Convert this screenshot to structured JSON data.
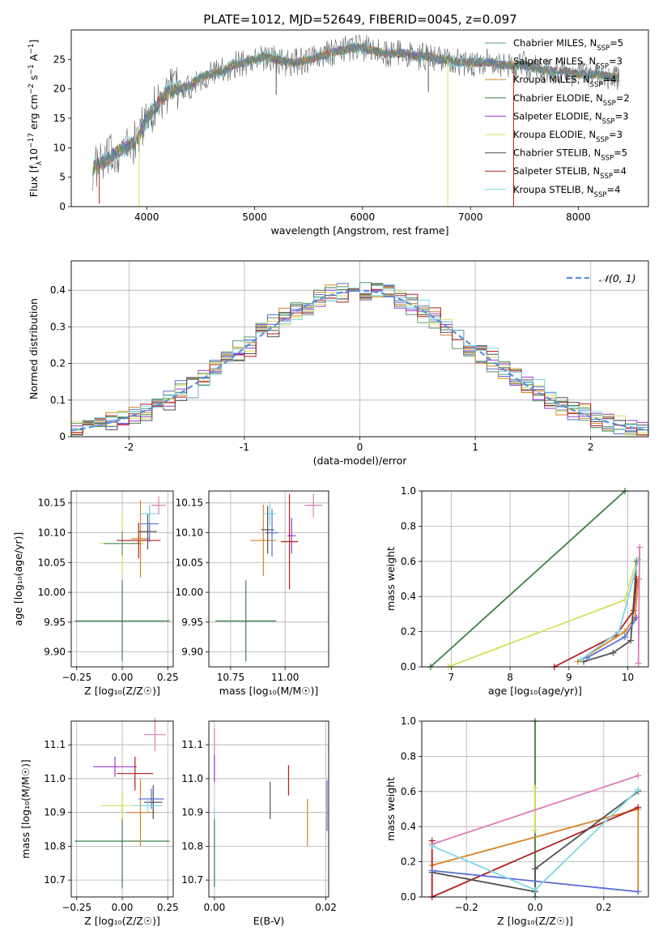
{
  "figure_title": "PLATE=1012, MJD=52649, FIBERID=0045, z=0.097",
  "colors": {
    "Chabrier MILES": "#5b9b6b",
    "Salpeter MILES": "#5a6fd6",
    "Kroupa MILES": "#d98324",
    "Chabrier ELODIE": "#3c7f45",
    "Salpeter ELODIE": "#9a3ad0",
    "Kroupa ELODIE": "#d7e05e",
    "Chabrier STELIB": "#505050",
    "Salpeter STELIB": "#b51d1d",
    "Kroupa STELIB": "#7fd7e4",
    "pink": "#e07ab8",
    "normal_curve": "#5b8fd9"
  },
  "chart_data": [
    {
      "id": "spectrum",
      "type": "line",
      "title": "PLATE=1012, MJD=52649, FIBERID=0045, z=0.097",
      "xlabel": "wavelength [Angstrom, rest frame]",
      "ylabel_parts": [
        "Flux [f",
        "λ",
        "10",
        "−17",
        " erg cm",
        "−2",
        " s",
        "−1",
        " A",
        "−1",
        "]"
      ],
      "xlim": [
        3300,
        8650
      ],
      "ylim": [
        0,
        30
      ],
      "xticks": [
        4000,
        5000,
        6000,
        7000,
        8000
      ],
      "yticks": [
        0,
        5,
        10,
        15,
        20,
        25
      ],
      "legend_position": "right",
      "legend": [
        {
          "label": "Chabrier MILES, N",
          "sub": "SSP",
          "suffix": "=5",
          "key": "Chabrier MILES"
        },
        {
          "label": "Salpeter MILES, N",
          "sub": "SSP",
          "suffix": "=3",
          "key": "Salpeter MILES"
        },
        {
          "label": "Kroupa MILES, N",
          "sub": "SSP",
          "suffix": "=4",
          "key": "Kroupa MILES"
        },
        {
          "label": "Chabrier ELODIE, N",
          "sub": "SSP",
          "suffix": "=2",
          "key": "Chabrier ELODIE"
        },
        {
          "label": "Salpeter ELODIE, N",
          "sub": "SSP",
          "suffix": "=3",
          "key": "Salpeter ELODIE"
        },
        {
          "label": "Kroupa ELODIE, N",
          "sub": "SSP",
          "suffix": "=3",
          "key": "Kroupa ELODIE"
        },
        {
          "label": "Chabrier STELIB, N",
          "sub": "SSP",
          "suffix": "=5",
          "key": "Chabrier STELIB"
        },
        {
          "label": "Salpeter STELIB, N",
          "sub": "SSP",
          "suffix": "=4",
          "key": "Salpeter STELIB"
        },
        {
          "label": "Kroupa STELIB, N",
          "sub": "SSP",
          "suffix": "=4",
          "key": "Kroupa STELIB"
        }
      ],
      "envelope": {
        "x": [
          3500,
          3600,
          3700,
          3800,
          3900,
          4000,
          4100,
          4200,
          4300,
          4400,
          4500,
          4600,
          4700,
          4800,
          4900,
          5000,
          5100,
          5200,
          5300,
          5400,
          5500,
          5600,
          5700,
          5800,
          5900,
          6000,
          6100,
          6200,
          6300,
          6400,
          6500,
          6600,
          6700,
          6800,
          6900,
          7000,
          7100,
          7200,
          7300,
          7400,
          7500,
          7600,
          7700,
          7800,
          7900,
          8000,
          8100,
          8200,
          8300
        ],
        "y": [
          6.5,
          7.5,
          9,
          10,
          11,
          15,
          17.5,
          19.5,
          20,
          20.5,
          22,
          22.5,
          23,
          24,
          24.5,
          25,
          25.5,
          25,
          24.5,
          24.5,
          25,
          25.5,
          26,
          26.5,
          27,
          27,
          26.5,
          26,
          26,
          26,
          25.5,
          25.5,
          25,
          25,
          24.5,
          24.5,
          24.5,
          24.5,
          24,
          24,
          24,
          23.5,
          23,
          23,
          23,
          22.5,
          22.5,
          22.5,
          22
        ]
      },
      "spikes": [
        {
          "key": "Kroupa ELODIE",
          "x": 3930,
          "y_low": 0
        },
        {
          "key": "Kroupa ELODIE",
          "x": 6790,
          "y_low": 0
        },
        {
          "key": "Salpeter STELIB",
          "x": 7400,
          "y_low": 0
        },
        {
          "key": "Salpeter STELIB",
          "x": 3560,
          "y_low": 0.5
        },
        {
          "key": "Chabrier STELIB",
          "x": 6610,
          "y_low": 19.5
        },
        {
          "key": "Chabrier STELIB",
          "x": 5200,
          "y_low": 19
        }
      ]
    },
    {
      "id": "residuals",
      "type": "histogram",
      "xlabel": "(data-model)/error",
      "ylabel": "Normed distribution",
      "xlim": [
        -2.5,
        2.5
      ],
      "ylim": [
        0,
        0.48
      ],
      "xticks": [
        -2,
        -1,
        0,
        1,
        2
      ],
      "yticks": [
        0.0,
        0.1,
        0.2,
        0.3,
        0.4
      ],
      "grid": true,
      "legend_position": "top-right",
      "legend_label": "𝒩(0, 1)",
      "bin_width": 0.1,
      "curve": {
        "mu": 0,
        "sigma": 1,
        "style": "dashed"
      }
    },
    {
      "id": "age_vs_Z",
      "type": "scatter",
      "xlabel": "Z [log₁₀(Z/Z☉)]",
      "ylabel": "age  [log₁₀(age/yr)]",
      "xlim": [
        -0.28,
        0.28
      ],
      "ylim": [
        9.875,
        10.17
      ],
      "xticks": [
        -0.25,
        0.0,
        0.25
      ],
      "xticklabels": [
        "−0.25",
        "0.00",
        "0.25"
      ],
      "yticks": [
        9.9,
        9.95,
        10.0,
        10.05,
        10.1,
        10.15
      ],
      "yticklabels": [
        "9.90",
        "9.95",
        "10.00",
        "10.05",
        "10.10",
        "10.15"
      ],
      "grid": true,
      "points": [
        {
          "key": "Chabrier ELODIE",
          "x": 0.0,
          "y": 9.952,
          "xerr": 0.26,
          "yerr": 0.068
        },
        {
          "key": "Kroupa ELODIE",
          "x": 0.0,
          "y": 10.082,
          "xerr": 0.12,
          "yerr": 0.05
        },
        {
          "key": "Chabrier MILES",
          "x": 0.0,
          "y": 10.082,
          "xerr": 0.1,
          "yerr": 0.02
        },
        {
          "key": "Salpeter STELIB",
          "x": 0.09,
          "y": 10.087,
          "xerr": 0.12,
          "yerr": 0.03
        },
        {
          "key": "Kroupa MILES",
          "x": 0.1,
          "y": 10.09,
          "xerr": 0.05,
          "yerr": 0.065
        },
        {
          "key": "Chabrier STELIB",
          "x": 0.14,
          "y": 10.102,
          "xerr": 0.05,
          "yerr": 0.03
        },
        {
          "key": "Salpeter MILES",
          "x": 0.15,
          "y": 10.115,
          "xerr": 0.05,
          "yerr": 0.03
        },
        {
          "key": "Kroupa STELIB",
          "x": 0.15,
          "y": 10.132,
          "xerr": 0.05,
          "yerr": 0.015
        },
        {
          "key": "pink",
          "x": 0.2,
          "y": 10.146,
          "xerr": 0.04,
          "yerr": 0.015
        }
      ]
    },
    {
      "id": "age_vs_mass",
      "type": "scatter",
      "xlabel": "mass [log₁₀(M/M☉)]",
      "xlim": [
        10.65,
        11.2
      ],
      "ylim": [
        9.875,
        10.17
      ],
      "xticks": [
        10.75,
        11.0
      ],
      "xticklabels": [
        "10.75",
        "11.00"
      ],
      "yticks": [
        9.9,
        9.95,
        10.0,
        10.05,
        10.1,
        10.15
      ],
      "yticklabels": [
        "9.90",
        "9.95",
        "10.00",
        "10.05",
        "10.10",
        "10.15"
      ],
      "grid": true,
      "points": [
        {
          "key": "Chabrier ELODIE",
          "x": 10.82,
          "y": 9.952,
          "xerr": 0.14,
          "yerr": 0.068
        },
        {
          "key": "Kroupa MILES",
          "x": 10.9,
          "y": 10.087,
          "xerr": 0.06,
          "yerr": 0.06
        },
        {
          "key": "Kroupa STELIB",
          "x": 10.93,
          "y": 10.132,
          "xerr": 0.03,
          "yerr": 0.02
        },
        {
          "key": "Salpeter MILES",
          "x": 10.94,
          "y": 10.1,
          "xerr": 0.03,
          "yerr": 0.04
        },
        {
          "key": "Chabrier STELIB",
          "x": 10.92,
          "y": 10.105,
          "xerr": 0.03,
          "yerr": 0.04
        },
        {
          "key": "Salpeter ELODIE",
          "x": 11.03,
          "y": 10.095,
          "xerr": 0.02,
          "yerr": 0.03
        },
        {
          "key": "Salpeter STELIB",
          "x": 11.02,
          "y": 10.085,
          "xerr": 0.04,
          "yerr": 0.08
        },
        {
          "key": "pink",
          "x": 11.13,
          "y": 10.146,
          "xerr": 0.04,
          "yerr": 0.02
        }
      ]
    },
    {
      "id": "weight_vs_age",
      "type": "line",
      "xlabel": "age  [log₁₀(age/yr)]",
      "ylabel": "mass weight",
      "xlim": [
        6.5,
        10.35
      ],
      "ylim": [
        0.0,
        1.0
      ],
      "xticks": [
        7,
        8,
        9,
        10
      ],
      "yticks": [
        0.0,
        0.2,
        0.4,
        0.6,
        0.8,
        1.0
      ],
      "yticklabels": [
        "0.0",
        "0.2",
        "0.4",
        "0.6",
        "0.8",
        "1.0"
      ],
      "grid": true,
      "series": [
        {
          "key": "Chabrier ELODIE",
          "x": [
            6.65,
            9.95
          ],
          "y": [
            0.0,
            1.0
          ]
        },
        {
          "key": "Kroupa ELODIE",
          "x": [
            6.95,
            9.95,
            10.15
          ],
          "y": [
            0.0,
            0.38,
            0.61
          ]
        },
        {
          "key": "Salpeter STELIB",
          "x": [
            8.75,
            9.8,
            10.1,
            10.15
          ],
          "y": [
            0.0,
            0.18,
            0.32,
            0.5
          ]
        },
        {
          "key": "Kroupa MILES",
          "x": [
            9.15,
            9.95,
            10.12,
            10.18
          ],
          "y": [
            0.03,
            0.2,
            0.28,
            0.5
          ]
        },
        {
          "key": "Chabrier STELIB",
          "x": [
            9.25,
            9.75,
            10.05,
            10.15
          ],
          "y": [
            0.03,
            0.08,
            0.15,
            0.6
          ]
        },
        {
          "key": "Salpeter MILES",
          "x": [
            9.3,
            9.95,
            10.15
          ],
          "y": [
            0.05,
            0.17,
            0.28
          ]
        },
        {
          "key": "Kroupa STELIB",
          "x": [
            9.2,
            9.85,
            10.18
          ],
          "y": [
            0.04,
            0.2,
            0.61
          ]
        },
        {
          "key": "pink",
          "x": [
            10.18,
            10.2
          ],
          "y": [
            0.02,
            0.68
          ]
        }
      ]
    },
    {
      "id": "mass_vs_Z",
      "type": "scatter",
      "xlabel": "Z [log₁₀(Z/Z☉)]",
      "ylabel": "mass [log₁₀(M/M☉)]",
      "xlim": [
        -0.28,
        0.28
      ],
      "ylim": [
        10.65,
        11.17
      ],
      "xticks": [
        -0.25,
        0.0,
        0.25
      ],
      "xticklabels": [
        "−0.25",
        "0.00",
        "0.25"
      ],
      "yticks": [
        10.7,
        10.8,
        10.9,
        11.0,
        11.1
      ],
      "yticklabels": [
        "10.7",
        "10.8",
        "10.9",
        "11.0",
        "11.1"
      ],
      "grid": true,
      "points": [
        {
          "key": "Chabrier ELODIE",
          "x": 0.0,
          "y": 10.815,
          "xerr": 0.26,
          "yerr": 0.14
        },
        {
          "key": "Kroupa MILES",
          "x": 0.1,
          "y": 10.9,
          "xerr": 0.08,
          "yerr": 0.1
        },
        {
          "key": "Kroupa ELODIE",
          "x": 0.0,
          "y": 10.92,
          "xerr": 0.12,
          "yerr": 0.04
        },
        {
          "key": "Salpeter ELODIE",
          "x": -0.04,
          "y": 11.035,
          "xerr": 0.12,
          "yerr": 0.03
        },
        {
          "key": "Salpeter STELIB",
          "x": 0.07,
          "y": 11.015,
          "xerr": 0.1,
          "yerr": 0.05
        },
        {
          "key": "Chabrier STELIB",
          "x": 0.17,
          "y": 10.93,
          "xerr": 0.05,
          "yerr": 0.05
        },
        {
          "key": "Salpeter MILES",
          "x": 0.16,
          "y": 10.94,
          "xerr": 0.07,
          "yerr": 0.03
        },
        {
          "key": "Kroupa STELIB",
          "x": 0.14,
          "y": 10.92,
          "xerr": 0.08,
          "yerr": 0.02
        },
        {
          "key": "pink",
          "x": 0.18,
          "y": 11.13,
          "xerr": 0.06,
          "yerr": 0.05
        }
      ]
    },
    {
      "id": "mass_vs_ebv",
      "type": "scatter",
      "xlabel": "E(B-V)",
      "xlim": [
        -0.001,
        0.0205
      ],
      "ylim": [
        10.65,
        11.17
      ],
      "xticks": [
        0.0,
        0.02
      ],
      "xticklabels": [
        "0.00",
        "0.02"
      ],
      "yticks": [
        10.7,
        10.8,
        10.9,
        11.0,
        11.1
      ],
      "yticklabels": [
        "10.7",
        "10.8",
        "10.9",
        "11.0",
        "11.1"
      ],
      "grid": true,
      "points": [
        {
          "key": "Chabrier ELODIE",
          "x": 0.0,
          "y": 10.78,
          "xerr": 0,
          "yerr": 0.1
        },
        {
          "key": "pink",
          "x": 0.0,
          "y": 11.07,
          "xerr": 0,
          "yerr": 0.08
        },
        {
          "key": "Salpeter ELODIE",
          "x": 0.0,
          "y": 11.03,
          "xerr": 0,
          "yerr": 0.04
        },
        {
          "key": "Kroupa STELIB",
          "x": 0.0,
          "y": 10.9,
          "xerr": 0,
          "yerr": 0.02
        },
        {
          "key": "Chabrier STELIB",
          "x": 0.01,
          "y": 10.935,
          "xerr": 0,
          "yerr": 0.055
        },
        {
          "key": "Salpeter STELIB",
          "x": 0.0133,
          "y": 10.995,
          "xerr": 0,
          "yerr": 0.045
        },
        {
          "key": "Kroupa MILES",
          "x": 0.0167,
          "y": 10.87,
          "xerr": 0,
          "yerr": 0.07
        },
        {
          "key": "Salpeter MILES",
          "x": 0.0202,
          "y": 10.92,
          "xerr": 0,
          "yerr": 0.075
        }
      ]
    },
    {
      "id": "weight_vs_Z",
      "type": "line",
      "xlabel": "Z [log₁₀(Z/Z☉)]",
      "ylabel": "mass weight",
      "xlim": [
        -0.33,
        0.33
      ],
      "ylim": [
        0.0,
        1.0
      ],
      "xticks": [
        -0.2,
        0.0,
        0.2
      ],
      "xticklabels": [
        "−0.2",
        "0.0",
        "0.2"
      ],
      "yticks": [
        0.0,
        0.2,
        0.4,
        0.6,
        0.8,
        1.0
      ],
      "yticklabels": [
        "0.0",
        "0.2",
        "0.4",
        "0.6",
        "0.8",
        "1.0"
      ],
      "grid": true,
      "series": [
        {
          "key": "Chabrier ELODIE",
          "x": [
            0.0,
            0.0
          ],
          "y": [
            0.0,
            1.0
          ]
        },
        {
          "key": "Kroupa ELODIE",
          "x": [
            0.0,
            0.0
          ],
          "y": [
            0.38,
            0.62
          ]
        },
        {
          "key": "pink",
          "x": [
            -0.3,
            0.3
          ],
          "y": [
            0.3,
            0.69
          ]
        },
        {
          "key": "Kroupa MILES",
          "x": [
            -0.3,
            0.3,
            0.3
          ],
          "y": [
            0.18,
            0.5,
            0.03
          ]
        },
        {
          "key": "Salpeter STELIB",
          "x": [
            -0.3,
            -0.3,
            0.3
          ],
          "y": [
            0.32,
            0.0,
            0.51
          ]
        },
        {
          "key": "Chabrier STELIB",
          "x": [
            -0.3,
            0.0,
            0.0,
            0.3
          ],
          "y": [
            0.14,
            0.03,
            0.16,
            0.6
          ]
        },
        {
          "key": "Salpeter MILES",
          "x": [
            -0.3,
            0.3
          ],
          "y": [
            0.15,
            0.03
          ]
        },
        {
          "key": "Kroupa STELIB",
          "x": [
            -0.3,
            0.0,
            0.3
          ],
          "y": [
            0.29,
            0.04,
            0.61
          ]
        }
      ]
    }
  ]
}
